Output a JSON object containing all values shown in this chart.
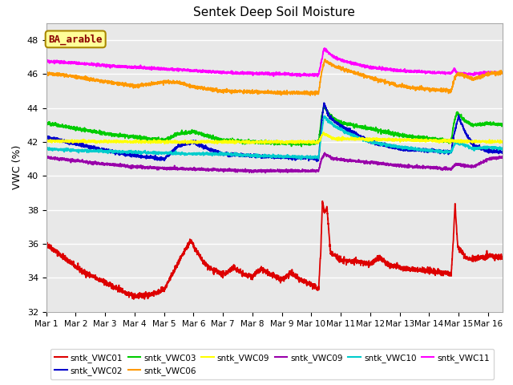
{
  "title": "Sentek Deep Soil Moisture",
  "ylabel": "VWC (%)",
  "ylim": [
    32,
    49
  ],
  "yticks": [
    32,
    34,
    36,
    38,
    40,
    42,
    44,
    46,
    48
  ],
  "xlim": [
    0,
    15.5
  ],
  "background_color": "#e8e8e8",
  "annotation_text": "BA_arable",
  "annotation_color": "#8B0000",
  "annotation_bg": "#ffff99",
  "annotation_border": "#aa8800",
  "colors": {
    "vwc01": "#dd0000",
    "vwc02": "#0000cc",
    "vwc03": "#00cc00",
    "vwc06": "#ff9900",
    "vwc09a": "#ffff00",
    "vwc09b": "#9900aa",
    "vwc10": "#00cccc",
    "vwc11": "#ff00ff"
  },
  "xtick_labels": [
    "Mar 1",
    "Mar 2",
    "Mar 3",
    "Mar 4",
    "Mar 5",
    "Mar 6",
    "Mar 7",
    "Mar 8",
    "Mar 9",
    "Mar 10",
    "Mar 11",
    "Mar 12",
    "Mar 13",
    "Mar 14",
    "Mar 15",
    "Mar 16"
  ],
  "legend_labels": [
    "sntk_VWC01",
    "sntk_VWC02",
    "sntk_VWC03",
    "sntk_VWC06",
    "sntk_VWC09",
    "sntk_VWC09",
    "sntk_VWC10",
    "sntk_VWC11"
  ]
}
